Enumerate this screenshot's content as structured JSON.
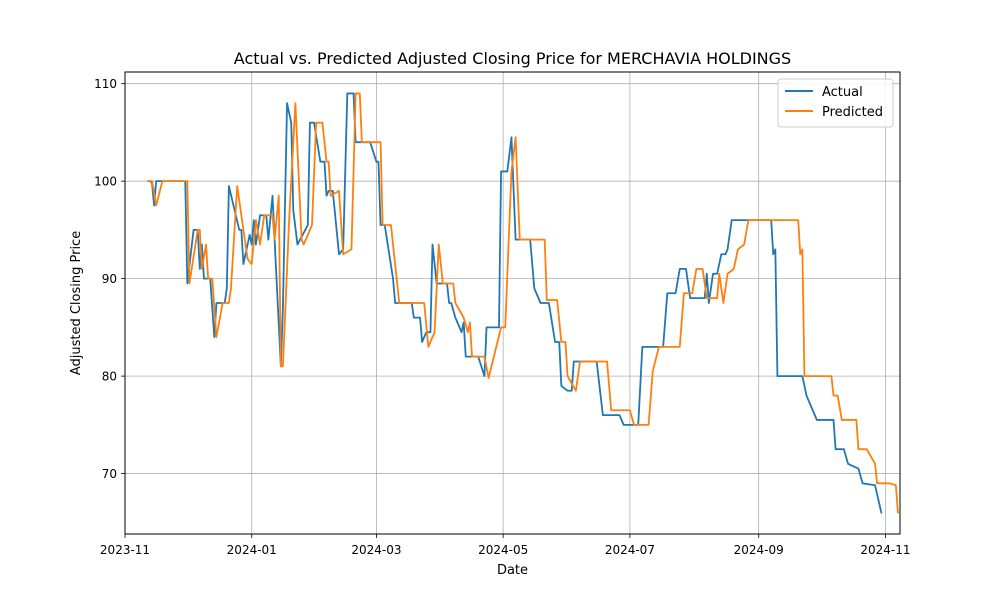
{
  "chart_data": {
    "type": "line",
    "title": "Actual vs. Predicted Adjusted Closing Price for MERCHAVIA HOLDINGS",
    "xlabel": "Date",
    "ylabel": "Adjusted Closing Price",
    "xlim": [
      "2023-11-01",
      "2024-11-08"
    ],
    "ylim": [
      63.8,
      111.2
    ],
    "x_ticks": [
      "2023-11",
      "2024-01",
      "2024-03",
      "2024-05",
      "2024-07",
      "2024-09",
      "2024-11"
    ],
    "y_ticks": [
      70,
      80,
      90,
      100,
      110
    ],
    "grid": true,
    "legend_position": "top-right",
    "series": [
      {
        "name": "Actual",
        "color": "#1f77b4",
        "points": [
          [
            "2023-11-13",
            100.0
          ],
          [
            "2023-11-14",
            99.8
          ],
          [
            "2023-11-15",
            97.5
          ],
          [
            "2023-11-16",
            100.0
          ],
          [
            "2023-11-30",
            100.0
          ],
          [
            "2023-12-01",
            89.5
          ],
          [
            "2023-12-04",
            95.0
          ],
          [
            "2023-12-06",
            95.0
          ],
          [
            "2023-12-07",
            91.0
          ],
          [
            "2023-12-08",
            93.5
          ],
          [
            "2023-12-09",
            90.0
          ],
          [
            "2023-12-12",
            90.0
          ],
          [
            "2023-12-14",
            84.0
          ],
          [
            "2023-12-15",
            87.5
          ],
          [
            "2023-12-19",
            87.5
          ],
          [
            "2023-12-20",
            89.0
          ],
          [
            "2023-12-21",
            99.5
          ],
          [
            "2023-12-26",
            95.0
          ],
          [
            "2023-12-27",
            95.0
          ],
          [
            "2023-12-28",
            91.5
          ],
          [
            "2023-12-31",
            94.5
          ],
          [
            "2024-01-01",
            93.5
          ],
          [
            "2024-01-02",
            96.0
          ],
          [
            "2024-01-03",
            93.5
          ],
          [
            "2024-01-05",
            96.5
          ],
          [
            "2024-01-08",
            96.5
          ],
          [
            "2024-01-09",
            94.0
          ],
          [
            "2024-01-11",
            98.5
          ],
          [
            "2024-01-12",
            94.0
          ],
          [
            "2024-01-15",
            81.0
          ],
          [
            "2024-01-16",
            87.0
          ],
          [
            "2024-01-18",
            108.0
          ],
          [
            "2024-01-20",
            106.0
          ],
          [
            "2024-01-21",
            97.0
          ],
          [
            "2024-01-23",
            93.5
          ],
          [
            "2024-01-28",
            95.5
          ],
          [
            "2024-01-29",
            106.0
          ],
          [
            "2024-01-31",
            106.0
          ],
          [
            "2024-02-03",
            102.0
          ],
          [
            "2024-02-05",
            102.0
          ],
          [
            "2024-02-06",
            98.5
          ],
          [
            "2024-02-07",
            99.0
          ],
          [
            "2024-02-09",
            99.0
          ],
          [
            "2024-02-12",
            92.5
          ],
          [
            "2024-02-14",
            93.0
          ],
          [
            "2024-02-16",
            109.0
          ],
          [
            "2024-02-19",
            109.0
          ],
          [
            "2024-02-20",
            104.0
          ],
          [
            "2024-02-27",
            104.0
          ],
          [
            "2024-03-01",
            102.0
          ],
          [
            "2024-03-02",
            102.0
          ],
          [
            "2024-03-03",
            95.5
          ],
          [
            "2024-03-05",
            95.5
          ],
          [
            "2024-03-09",
            90.0
          ],
          [
            "2024-03-10",
            87.5
          ],
          [
            "2024-03-18",
            87.5
          ],
          [
            "2024-03-19",
            86.0
          ],
          [
            "2024-03-22",
            86.0
          ],
          [
            "2024-03-23",
            83.5
          ],
          [
            "2024-03-25",
            84.5
          ],
          [
            "2024-03-27",
            84.5
          ],
          [
            "2024-03-28",
            93.5
          ],
          [
            "2024-03-30",
            89.5
          ],
          [
            "2024-04-04",
            89.5
          ],
          [
            "2024-04-05",
            87.5
          ],
          [
            "2024-04-06",
            87.5
          ],
          [
            "2024-04-08",
            86.0
          ],
          [
            "2024-04-11",
            84.5
          ],
          [
            "2024-04-12",
            85.5
          ],
          [
            "2024-04-13",
            82.0
          ],
          [
            "2024-04-19",
            82.0
          ],
          [
            "2024-04-22",
            80.0
          ],
          [
            "2024-04-23",
            85.0
          ],
          [
            "2024-04-29",
            85.0
          ],
          [
            "2024-04-30",
            101.0
          ],
          [
            "2024-05-03",
            101.0
          ],
          [
            "2024-05-05",
            104.5
          ],
          [
            "2024-05-07",
            94.0
          ],
          [
            "2024-05-14",
            94.0
          ],
          [
            "2024-05-16",
            89.0
          ],
          [
            "2024-05-19",
            87.5
          ],
          [
            "2024-05-23",
            87.5
          ],
          [
            "2024-05-26",
            83.5
          ],
          [
            "2024-05-28",
            83.5
          ],
          [
            "2024-05-29",
            79.0
          ],
          [
            "2024-06-01",
            78.5
          ],
          [
            "2024-06-03",
            78.5
          ],
          [
            "2024-06-04",
            81.5
          ],
          [
            "2024-06-15",
            81.5
          ],
          [
            "2024-06-18",
            76.0
          ],
          [
            "2024-06-26",
            76.0
          ],
          [
            "2024-06-28",
            75.0
          ],
          [
            "2024-07-05",
            75.0
          ],
          [
            "2024-07-07",
            83.0
          ],
          [
            "2024-07-10",
            83.0
          ],
          [
            "2024-07-17",
            83.0
          ],
          [
            "2024-07-19",
            88.5
          ],
          [
            "2024-07-23",
            88.5
          ],
          [
            "2024-07-25",
            91.0
          ],
          [
            "2024-07-28",
            91.0
          ],
          [
            "2024-07-30",
            88.0
          ],
          [
            "2024-08-06",
            88.0
          ],
          [
            "2024-08-07",
            90.5
          ],
          [
            "2024-08-08",
            87.5
          ],
          [
            "2024-08-10",
            90.5
          ],
          [
            "2024-08-12",
            90.5
          ],
          [
            "2024-08-14",
            92.5
          ],
          [
            "2024-08-16",
            92.5
          ],
          [
            "2024-08-17",
            93.0
          ],
          [
            "2024-08-19",
            96.0
          ],
          [
            "2024-09-07",
            96.0
          ],
          [
            "2024-09-08",
            92.5
          ],
          [
            "2024-09-09",
            93.0
          ],
          [
            "2024-09-10",
            80.0
          ],
          [
            "2024-09-22",
            80.0
          ],
          [
            "2024-09-24",
            78.0
          ],
          [
            "2024-09-29",
            75.5
          ],
          [
            "2024-10-07",
            75.5
          ],
          [
            "2024-10-08",
            72.5
          ],
          [
            "2024-10-12",
            72.5
          ],
          [
            "2024-10-14",
            71.0
          ],
          [
            "2024-10-19",
            70.5
          ],
          [
            "2024-10-21",
            69.0
          ],
          [
            "2024-10-27",
            68.8
          ],
          [
            "2024-10-30",
            66.0
          ]
        ]
      },
      {
        "name": "Predicted",
        "color": "#ff7f0e",
        "points": [
          [
            "2023-11-12",
            100.0
          ],
          [
            "2023-11-14",
            100.0
          ],
          [
            "2023-11-16",
            97.5
          ],
          [
            "2023-11-19",
            100.0
          ],
          [
            "2023-12-01",
            100.0
          ],
          [
            "2023-12-02",
            89.5
          ],
          [
            "2023-12-06",
            95.0
          ],
          [
            "2023-12-07",
            95.0
          ],
          [
            "2023-12-08",
            91.0
          ],
          [
            "2023-12-10",
            93.5
          ],
          [
            "2023-12-11",
            90.0
          ],
          [
            "2023-12-13",
            90.0
          ],
          [
            "2023-12-15",
            84.0
          ],
          [
            "2023-12-18",
            87.5
          ],
          [
            "2023-12-21",
            87.5
          ],
          [
            "2023-12-22",
            89.0
          ],
          [
            "2023-12-25",
            99.5
          ],
          [
            "2023-12-28",
            95.0
          ],
          [
            "2023-12-30",
            92.0
          ],
          [
            "2024-01-01",
            91.5
          ],
          [
            "2024-01-03",
            96.0
          ],
          [
            "2024-01-05",
            93.5
          ],
          [
            "2024-01-07",
            96.5
          ],
          [
            "2024-01-11",
            96.5
          ],
          [
            "2024-01-12",
            94.0
          ],
          [
            "2024-01-14",
            98.5
          ],
          [
            "2024-01-15",
            81.0
          ],
          [
            "2024-01-16",
            81.0
          ],
          [
            "2024-01-19",
            96.0
          ],
          [
            "2024-01-22",
            108.0
          ],
          [
            "2024-01-25",
            94.0
          ],
          [
            "2024-01-26",
            93.5
          ],
          [
            "2024-01-30",
            95.5
          ],
          [
            "2024-02-01",
            106.0
          ],
          [
            "2024-02-04",
            106.0
          ],
          [
            "2024-02-06",
            102.0
          ],
          [
            "2024-02-07",
            102.0
          ],
          [
            "2024-02-08",
            98.5
          ],
          [
            "2024-02-12",
            99.0
          ],
          [
            "2024-02-14",
            92.5
          ],
          [
            "2024-02-18",
            93.0
          ],
          [
            "2024-02-20",
            109.0
          ],
          [
            "2024-02-22",
            109.0
          ],
          [
            "2024-02-23",
            104.0
          ],
          [
            "2024-03-03",
            104.0
          ],
          [
            "2024-03-04",
            95.5
          ],
          [
            "2024-03-08",
            95.5
          ],
          [
            "2024-03-12",
            87.5
          ],
          [
            "2024-03-24",
            87.5
          ],
          [
            "2024-03-26",
            83.0
          ],
          [
            "2024-03-29",
            84.5
          ],
          [
            "2024-03-31",
            93.5
          ],
          [
            "2024-04-02",
            89.5
          ],
          [
            "2024-04-07",
            89.5
          ],
          [
            "2024-04-08",
            87.5
          ],
          [
            "2024-04-12",
            86.0
          ],
          [
            "2024-04-14",
            84.5
          ],
          [
            "2024-04-15",
            85.5
          ],
          [
            "2024-04-16",
            82.0
          ],
          [
            "2024-04-22",
            82.0
          ],
          [
            "2024-04-24",
            79.8
          ],
          [
            "2024-04-30",
            85.0
          ],
          [
            "2024-05-02",
            85.0
          ],
          [
            "2024-05-05",
            101.0
          ],
          [
            "2024-05-07",
            104.5
          ],
          [
            "2024-05-09",
            94.0
          ],
          [
            "2024-05-21",
            94.0
          ],
          [
            "2024-05-22",
            87.8
          ],
          [
            "2024-05-27",
            87.8
          ],
          [
            "2024-05-29",
            83.5
          ],
          [
            "2024-05-31",
            83.5
          ],
          [
            "2024-06-01",
            80.0
          ],
          [
            "2024-06-05",
            78.5
          ],
          [
            "2024-06-07",
            81.5
          ],
          [
            "2024-06-20",
            81.5
          ],
          [
            "2024-06-22",
            76.5
          ],
          [
            "2024-07-01",
            76.5
          ],
          [
            "2024-07-03",
            75.0
          ],
          [
            "2024-07-10",
            75.0
          ],
          [
            "2024-07-12",
            80.5
          ],
          [
            "2024-07-15",
            83.0
          ],
          [
            "2024-07-25",
            83.0
          ],
          [
            "2024-07-27",
            88.5
          ],
          [
            "2024-07-31",
            88.5
          ],
          [
            "2024-08-02",
            91.0
          ],
          [
            "2024-08-05",
            91.0
          ],
          [
            "2024-08-07",
            88.0
          ],
          [
            "2024-08-12",
            88.0
          ],
          [
            "2024-08-13",
            90.5
          ],
          [
            "2024-08-15",
            87.5
          ],
          [
            "2024-08-17",
            90.5
          ],
          [
            "2024-08-20",
            91.0
          ],
          [
            "2024-08-22",
            93.0
          ],
          [
            "2024-08-25",
            93.5
          ],
          [
            "2024-08-27",
            96.0
          ],
          [
            "2024-09-20",
            96.0
          ],
          [
            "2024-09-21",
            92.5
          ],
          [
            "2024-09-22",
            93.0
          ],
          [
            "2024-09-23",
            80.0
          ],
          [
            "2024-10-06",
            80.0
          ],
          [
            "2024-10-07",
            78.0
          ],
          [
            "2024-10-09",
            78.0
          ],
          [
            "2024-10-11",
            75.5
          ],
          [
            "2024-10-18",
            75.5
          ],
          [
            "2024-10-19",
            72.5
          ],
          [
            "2024-10-23",
            72.5
          ],
          [
            "2024-10-27",
            71.0
          ],
          [
            "2024-10-28",
            69.0
          ],
          [
            "2024-11-03",
            69.0
          ],
          [
            "2024-11-06",
            68.8
          ],
          [
            "2024-11-07",
            66.0
          ]
        ]
      }
    ]
  }
}
